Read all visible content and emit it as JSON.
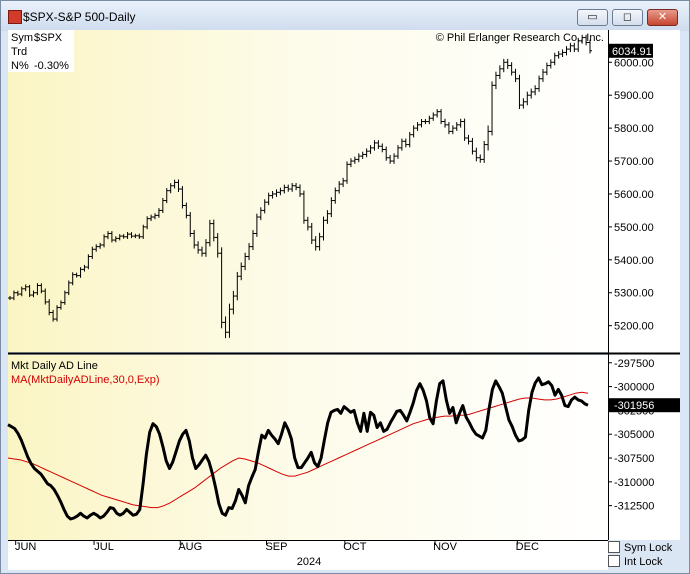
{
  "window": {
    "title": "$SPX-S&P 500-Daily",
    "buttons": {
      "minimize": "▭",
      "restore": "◻",
      "close": "✕"
    }
  },
  "info": {
    "sym_label": "Sym",
    "sym_value": "$SPX",
    "trd_label": "Trd",
    "n_label": "N%",
    "n_value": "-0.30%",
    "copyright": "© Phil Erlanger Research Co., Inc."
  },
  "colors": {
    "price_bars": "#000000",
    "ad_line": "#000000",
    "ma_line": "#d40000",
    "last_price_tag": "#000000"
  },
  "chart_data": [
    {
      "type": "ohlc",
      "title": "$SPX-S&P 500-Daily",
      "y_ticks": [
        5200,
        5300,
        5400,
        5500,
        5600,
        5700,
        5800,
        5900,
        6000
      ],
      "y_tick_labels": [
        "5200.00",
        "5300.00",
        "5400.00",
        "5500.00",
        "5600.00",
        "5700.00",
        "5800.00",
        "5900.00",
        "6000.00"
      ],
      "ylim": [
        5120,
        6095
      ],
      "last_value_label": "6034.91",
      "last_value": 6034.91,
      "x_labels": [
        "JUN",
        "JUL",
        "AUG",
        "SEP",
        "OCT",
        "NOV",
        "DEC"
      ],
      "year_label": "2024",
      "closes": [
        5284,
        5300,
        5296,
        5312,
        5318,
        5293,
        5300,
        5322,
        5305,
        5272,
        5240,
        5220,
        5255,
        5270,
        5300,
        5330,
        5355,
        5352,
        5371,
        5378,
        5410,
        5432,
        5440,
        5445,
        5470,
        5480,
        5460,
        5465,
        5472,
        5470,
        5478,
        5472,
        5473,
        5470,
        5500,
        5525,
        5530,
        5535,
        5550,
        5580,
        5610,
        5625,
        5635,
        5615,
        5565,
        5535,
        5480,
        5445,
        5430,
        5420,
        5452,
        5510,
        5468,
        5420,
        5210,
        5180,
        5250,
        5290,
        5350,
        5380,
        5410,
        5440,
        5480,
        5530,
        5550,
        5575,
        5595,
        5600,
        5605,
        5610,
        5620,
        5615,
        5625,
        5620,
        5600,
        5520,
        5500,
        5460,
        5440,
        5470,
        5520,
        5540,
        5580,
        5610,
        5630,
        5640,
        5690,
        5700,
        5705,
        5715,
        5720,
        5730,
        5740,
        5755,
        5745,
        5735,
        5710,
        5700,
        5715,
        5740,
        5760,
        5750,
        5780,
        5800,
        5810,
        5820,
        5820,
        5830,
        5840,
        5850,
        5820,
        5810,
        5790,
        5800,
        5810,
        5820,
        5770,
        5760,
        5730,
        5710,
        5705,
        5750,
        5790,
        5930,
        5960,
        5980,
        6000,
        5990,
        5970,
        5950,
        5870,
        5880,
        5900,
        5910,
        5920,
        5950,
        5970,
        5990,
        6000,
        6020,
        6025,
        6030,
        6040,
        6050,
        6040,
        6065,
        6075,
        6060,
        6035
      ],
      "range": [
        20,
        22,
        20,
        22,
        24,
        20,
        22,
        24,
        22,
        26,
        28,
        26,
        24,
        22,
        22,
        24,
        24,
        20,
        22,
        22,
        22,
        26,
        24,
        22,
        24,
        24,
        24,
        22,
        20,
        20,
        22,
        20,
        20,
        22,
        22,
        24,
        24,
        22,
        24,
        26,
        26,
        26,
        28,
        30,
        30,
        30,
        34,
        36,
        38,
        34,
        36,
        38,
        40,
        44,
        60,
        60,
        56,
        52,
        44,
        40,
        38,
        36,
        34,
        34,
        32,
        30,
        30,
        30,
        30,
        30,
        28,
        28,
        28,
        28,
        30,
        34,
        36,
        40,
        40,
        40,
        38,
        36,
        34,
        32,
        30,
        30,
        30,
        28,
        28,
        28,
        28,
        28,
        28,
        28,
        28,
        28,
        30,
        28,
        28,
        28,
        28,
        28,
        28,
        28,
        28,
        26,
        26,
        26,
        26,
        26,
        26,
        28,
        28,
        28,
        28,
        28,
        30,
        32,
        34,
        36,
        34,
        36,
        60,
        40,
        38,
        36,
        34,
        34,
        34,
        34,
        40,
        36,
        36,
        34,
        34,
        32,
        32,
        30,
        30,
        30,
        30,
        30,
        30,
        30,
        30,
        30,
        28,
        28,
        28
      ]
    },
    {
      "type": "line",
      "title": "Mkt Daily AD Line",
      "series": [
        {
          "name": "Mkt Daily AD Line",
          "values": [
            -304000,
            -304200,
            -304400,
            -304900,
            -305600,
            -306500,
            -307400,
            -308100,
            -308600,
            -308900,
            -309200,
            -309700,
            -310200,
            -310400,
            -310800,
            -311400,
            -312100,
            -312900,
            -313600,
            -313900,
            -313800,
            -313600,
            -313300,
            -313600,
            -313800,
            -313500,
            -313300,
            -313500,
            -313800,
            -313600,
            -313200,
            -312700,
            -312800,
            -313300,
            -313500,
            -313300,
            -312900,
            -313200,
            -313500,
            -313400,
            -312900,
            -310200,
            -307100,
            -304800,
            -303900,
            -304200,
            -305000,
            -306300,
            -307800,
            -308600,
            -307900,
            -306800,
            -305700,
            -305000,
            -304600,
            -305700,
            -307500,
            -308600,
            -308200,
            -307700,
            -307200,
            -307900,
            -309100,
            -310600,
            -312300,
            -313300,
            -313500,
            -312700,
            -312800,
            -312000,
            -310800,
            -311400,
            -312200,
            -310400,
            -309500,
            -308700,
            -306800,
            -305100,
            -305400,
            -304600,
            -305100,
            -305500,
            -306000,
            -305000,
            -303800,
            -304500,
            -305500,
            -307500,
            -308500,
            -308500,
            -308000,
            -307500,
            -306900,
            -308000,
            -308400,
            -307500,
            -305600,
            -303800,
            -302700,
            -302500,
            -302400,
            -302800,
            -302100,
            -302400,
            -302700,
            -302500,
            -303800,
            -304700,
            -302800,
            -304700,
            -302700,
            -303000,
            -304300,
            -303800,
            -304700,
            -304500,
            -303800,
            -303200,
            -302600,
            -302500,
            -303000,
            -303600,
            -302700,
            -301700,
            -300400,
            -299700,
            -300400,
            -301500,
            -303300,
            -303900,
            -301500,
            -299700,
            -299400,
            -301400,
            -302800,
            -302200,
            -303800,
            -302800,
            -302000,
            -303200,
            -303800,
            -304500,
            -305000,
            -305200,
            -305400,
            -304600,
            -302300,
            -300300,
            -299400,
            -300000,
            -300700,
            -302100,
            -303500,
            -304200,
            -305100,
            -305700,
            -305600,
            -305300,
            -302500,
            -300600,
            -299600,
            -299100,
            -299800,
            -299700,
            -299500,
            -299900,
            -300900,
            -300300,
            -300900,
            -302000,
            -302100,
            -301400,
            -301100,
            -301400,
            -301500,
            -301800,
            -301956
          ]
        },
        {
          "name": "MA(MktDailyADLine,30,0,Exp)",
          "values": [
            -307500,
            -307600,
            -307700,
            -307900,
            -308100,
            -308400,
            -308700,
            -309000,
            -309300,
            -309600,
            -309900,
            -310200,
            -310500,
            -310800,
            -311100,
            -311400,
            -311600,
            -311800,
            -312000,
            -312200,
            -312400,
            -312500,
            -312600,
            -312700,
            -312700,
            -312500,
            -312200,
            -311800,
            -311400,
            -311000,
            -310600,
            -310100,
            -309600,
            -309100,
            -308600,
            -308200,
            -307800,
            -307500,
            -307600,
            -307800,
            -308000,
            -308300,
            -308600,
            -308900,
            -309200,
            -309400,
            -309400,
            -309200,
            -309000,
            -308700,
            -308400,
            -308100,
            -307800,
            -307500,
            -307200,
            -306900,
            -306600,
            -306300,
            -306000,
            -305700,
            -305400,
            -305100,
            -304800,
            -304500,
            -304200,
            -303900,
            -303700,
            -303500,
            -303300,
            -303200,
            -303100,
            -303100,
            -303000,
            -303000,
            -302900,
            -302700,
            -302500,
            -302300,
            -302100,
            -301900,
            -301700,
            -301500,
            -301300,
            -301200,
            -301200,
            -301300,
            -301400,
            -301400,
            -301300,
            -301100,
            -300900,
            -300700,
            -300600,
            -300700
          ]
        }
      ],
      "y_ticks": [
        -312500,
        -310000,
        -307500,
        -305000,
        -302500,
        -300000,
        -297500
      ],
      "y_tick_labels": [
        "-312500",
        "-310000",
        "-307500",
        "-305000",
        "-302500",
        "-300000",
        "-297500"
      ],
      "ylim": [
        -316000,
        -297000
      ],
      "last_value_label": "-301956",
      "last_value": -301956
    }
  ],
  "locks": {
    "sym": "Sym Lock",
    "int": "Int Lock"
  }
}
